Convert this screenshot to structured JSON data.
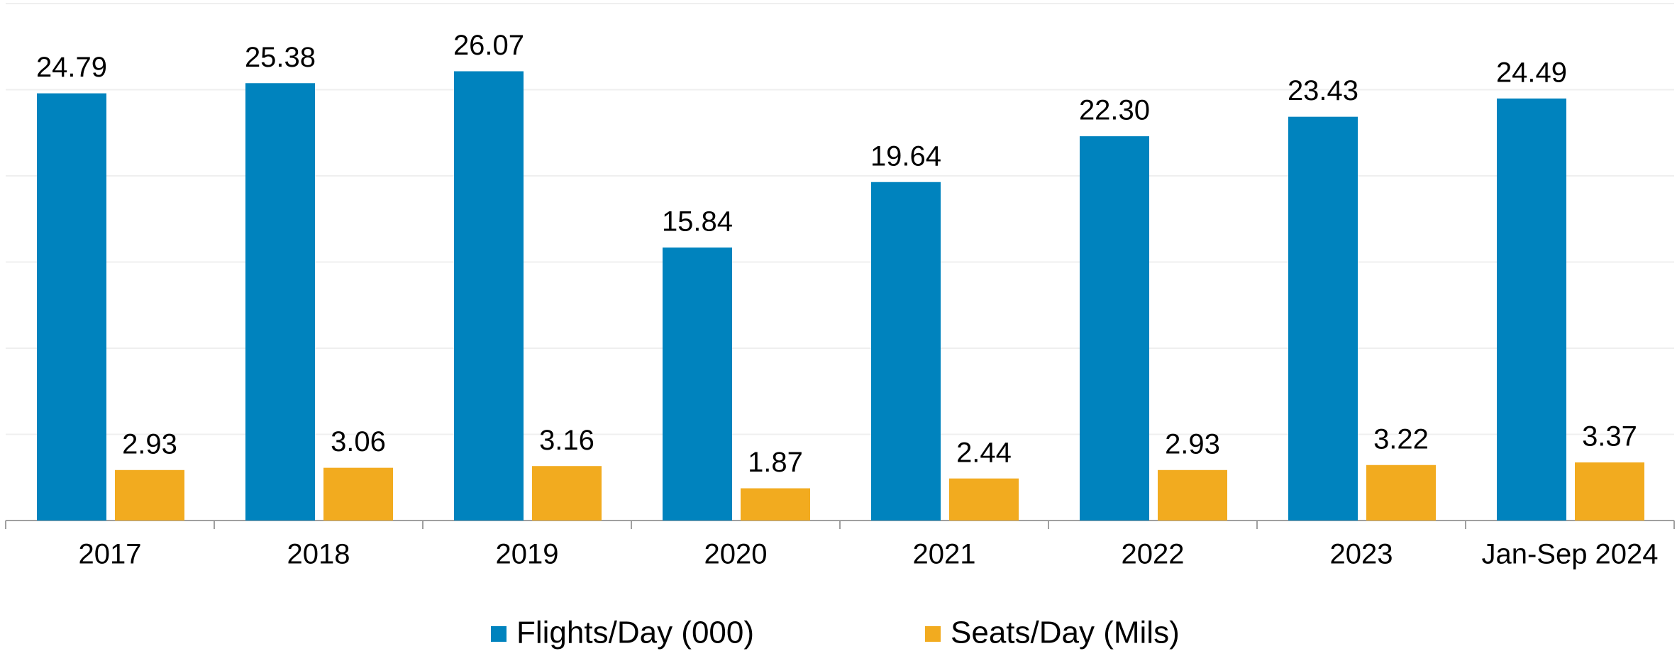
{
  "chart_data": {
    "type": "bar",
    "categories": [
      "2017",
      "2018",
      "2019",
      "2020",
      "2021",
      "2022",
      "2023",
      "Jan-Sep 2024"
    ],
    "series": [
      {
        "name": "Flights/Day (000)",
        "color": "#0083be",
        "values": [
          24.79,
          25.38,
          26.07,
          15.84,
          19.64,
          22.3,
          23.43,
          24.49
        ],
        "value_labels": [
          "24.79",
          "25.38",
          "26.07",
          "15.84",
          "19.64",
          "22.30",
          "23.43",
          "24.49"
        ]
      },
      {
        "name": "Seats/Day (Mils)",
        "color": "#f2ab1f",
        "values": [
          2.93,
          3.06,
          3.16,
          1.87,
          2.44,
          2.93,
          3.22,
          3.37
        ],
        "value_labels": [
          "2.93",
          "3.06",
          "3.16",
          "1.87",
          "2.44",
          "2.93",
          "3.22",
          "3.37"
        ]
      }
    ],
    "ylim": [
      0,
      30
    ],
    "yticks": [
      0,
      5,
      10,
      15,
      20,
      25,
      30
    ],
    "grid": true,
    "legend": "bottom"
  }
}
